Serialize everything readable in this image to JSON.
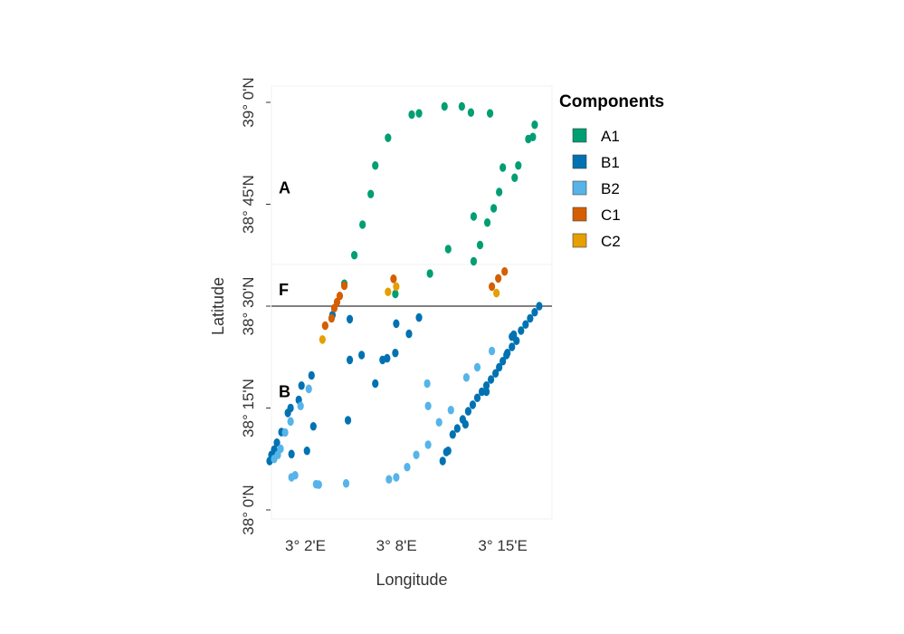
{
  "chart_data": {
    "type": "scatter",
    "xlabel": "Longitude",
    "ylabel": "Latitude",
    "xlim": [
      3.0,
      3.3
    ],
    "ylim": [
      38.0,
      39.0
    ],
    "x_ticks": [
      {
        "value": 3.0333,
        "label": "3° 2'E"
      },
      {
        "value": 3.1333,
        "label": "3° 8'E"
      },
      {
        "value": 3.25,
        "label": "3° 15'E"
      }
    ],
    "y_ticks": [
      {
        "value": 38.0,
        "label": "38° 0'N"
      },
      {
        "value": 38.25,
        "label": "38° 15'N"
      },
      {
        "value": 38.5,
        "label": "38° 30'N"
      },
      {
        "value": 38.75,
        "label": "38° 45'N"
      },
      {
        "value": 39.0,
        "label": "39° 0'N"
      }
    ],
    "regions": [
      {
        "label": "A",
        "lat": 38.79
      },
      {
        "label": "F",
        "lat": 38.54
      },
      {
        "label": "B",
        "lat": 38.29
      }
    ],
    "hline": 38.5,
    "legend_title": "Components",
    "legend_position": "right",
    "series": [
      {
        "name": "A1",
        "color": "#009E73",
        "points": [
          [
            3.186,
            38.99
          ],
          [
            3.158,
            38.973
          ],
          [
            3.15,
            38.97
          ],
          [
            3.205,
            38.99
          ],
          [
            3.215,
            38.975
          ],
          [
            3.236,
            38.973
          ],
          [
            3.124,
            38.913
          ],
          [
            3.11,
            38.845
          ],
          [
            3.105,
            38.775
          ],
          [
            3.096,
            38.7
          ],
          [
            3.087,
            38.625
          ],
          [
            3.076,
            38.555
          ],
          [
            3.285,
            38.945
          ],
          [
            3.283,
            38.915
          ],
          [
            3.278,
            38.91
          ],
          [
            3.267,
            38.845
          ],
          [
            3.263,
            38.815
          ],
          [
            3.25,
            38.84
          ],
          [
            3.246,
            38.78
          ],
          [
            3.24,
            38.74
          ],
          [
            3.233,
            38.705
          ],
          [
            3.225,
            38.65
          ],
          [
            3.218,
            38.61
          ],
          [
            3.19,
            38.64
          ],
          [
            3.218,
            38.72
          ],
          [
            3.17,
            38.58
          ],
          [
            3.132,
            38.53
          ]
        ]
      },
      {
        "name": "B1",
        "color": "#0072B2",
        "points": [
          [
            3.158,
            38.472
          ],
          [
            3.133,
            38.457
          ],
          [
            3.147,
            38.432
          ],
          [
            3.132,
            38.385
          ],
          [
            3.123,
            38.372
          ],
          [
            3.082,
            38.368
          ],
          [
            3.04,
            38.33
          ],
          [
            3.029,
            38.305
          ],
          [
            3.026,
            38.27
          ],
          [
            3.017,
            38.25
          ],
          [
            3.014,
            38.238
          ],
          [
            3.007,
            38.191
          ],
          [
            3.002,
            38.165
          ],
          [
            2.999,
            38.148
          ],
          [
            2.996,
            38.135
          ],
          [
            2.994,
            38.12
          ],
          [
            3.018,
            38.137
          ],
          [
            3.042,
            38.205
          ],
          [
            3.095,
            38.38
          ],
          [
            3.082,
            38.468
          ],
          [
            3.063,
            38.478
          ],
          [
            3.118,
            38.368
          ],
          [
            3.11,
            38.31
          ],
          [
            3.08,
            38.22
          ],
          [
            3.035,
            38.145
          ],
          [
            3.29,
            38.5
          ],
          [
            3.285,
            38.485
          ],
          [
            3.28,
            38.47
          ],
          [
            3.275,
            38.455
          ],
          [
            3.27,
            38.44
          ],
          [
            3.265,
            38.415
          ],
          [
            3.26,
            38.4
          ],
          [
            3.255,
            38.385
          ],
          [
            3.25,
            38.365
          ],
          [
            3.246,
            38.35
          ],
          [
            3.242,
            38.335
          ],
          [
            3.237,
            38.32
          ],
          [
            3.232,
            38.305
          ],
          [
            3.227,
            38.29
          ],
          [
            3.222,
            38.275
          ],
          [
            3.217,
            38.258
          ],
          [
            3.212,
            38.242
          ],
          [
            3.206,
            38.222
          ],
          [
            3.2,
            38.2
          ],
          [
            3.195,
            38.185
          ],
          [
            3.188,
            38.142
          ],
          [
            3.184,
            38.12
          ],
          [
            3.262,
            38.43
          ],
          [
            3.26,
            38.425
          ],
          [
            3.254,
            38.38
          ],
          [
            3.232,
            38.29
          ],
          [
            3.209,
            38.21
          ],
          [
            3.19,
            38.145
          ]
        ]
      },
      {
        "name": "B2",
        "color": "#56B4E9",
        "points": [
          [
            3.037,
            38.297
          ],
          [
            3.028,
            38.255
          ],
          [
            3.017,
            38.217
          ],
          [
            3.011,
            38.19
          ],
          [
            3.006,
            38.15
          ],
          [
            3.003,
            38.135
          ],
          [
            2.999,
            38.125
          ],
          [
            3.022,
            38.085
          ],
          [
            3.045,
            38.063
          ],
          [
            3.048,
            38.062
          ],
          [
            3.078,
            38.065
          ],
          [
            3.125,
            38.075
          ],
          [
            3.133,
            38.08
          ],
          [
            3.145,
            38.105
          ],
          [
            3.155,
            38.135
          ],
          [
            3.168,
            38.16
          ],
          [
            3.18,
            38.215
          ],
          [
            3.193,
            38.245
          ],
          [
            3.21,
            38.325
          ],
          [
            3.222,
            38.35
          ],
          [
            3.238,
            38.39
          ],
          [
            3.167,
            38.31
          ],
          [
            3.168,
            38.255
          ],
          [
            3.018,
            38.08
          ]
        ]
      },
      {
        "name": "C1",
        "color": "#D55E00",
        "points": [
          [
            3.076,
            38.55
          ],
          [
            3.071,
            38.525
          ],
          [
            3.068,
            38.51
          ],
          [
            3.065,
            38.495
          ],
          [
            3.062,
            38.47
          ],
          [
            3.055,
            38.452
          ],
          [
            3.13,
            38.567
          ],
          [
            3.238,
            38.548
          ],
          [
            3.245,
            38.568
          ],
          [
            3.252,
            38.585
          ]
        ]
      },
      {
        "name": "C2",
        "color": "#E69F00",
        "points": [
          [
            3.133,
            38.548
          ],
          [
            3.124,
            38.535
          ],
          [
            3.243,
            38.532
          ],
          [
            3.052,
            38.418
          ]
        ]
      }
    ]
  }
}
